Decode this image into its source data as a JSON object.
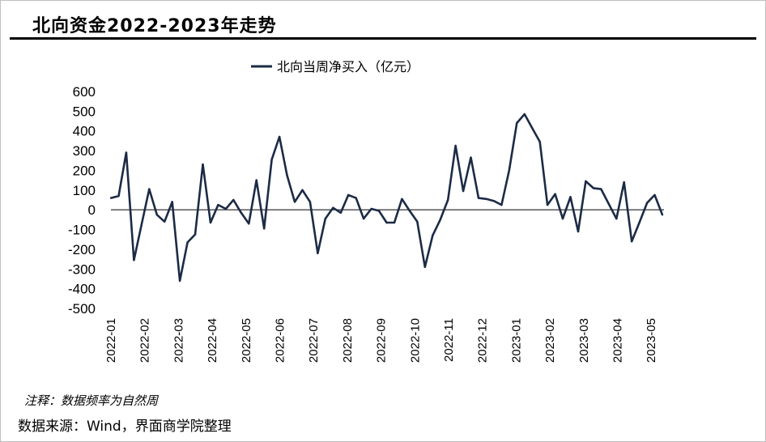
{
  "header": {
    "title": "北向资金2022-2023年走势"
  },
  "footer": {
    "note": "注释：数据频率为自然周",
    "source": "数据来源：Wind，界面商学院整理"
  },
  "chart_data": {
    "type": "line",
    "title": "北向资金2022-2023年走势",
    "xlabel": "",
    "ylabel": "",
    "ylim": [
      -500,
      600
    ],
    "y_ticks": [
      600,
      500,
      400,
      300,
      200,
      100,
      0,
      -100,
      -200,
      -300,
      -400,
      -500
    ],
    "x_tick_labels": [
      "2022-01",
      "2022-02",
      "2022-03",
      "2022-04",
      "2022-05",
      "2022-06",
      "2022-07",
      "2022-08",
      "2022-09",
      "2022-10",
      "2022-11",
      "2022-12",
      "2023-01",
      "2023-02",
      "2023-03",
      "2023-04",
      "2023-05"
    ],
    "line_color": "#1c2b45",
    "series": [
      {
        "name": "北向当周净买入（亿元）",
        "values": [
          60,
          70,
          290,
          -255,
          -75,
          105,
          -25,
          -60,
          40,
          -360,
          -165,
          -125,
          230,
          -65,
          25,
          5,
          50,
          -15,
          -70,
          150,
          -95,
          255,
          370,
          175,
          40,
          100,
          40,
          -220,
          -45,
          10,
          -15,
          75,
          60,
          -45,
          5,
          -5,
          -65,
          -65,
          55,
          -5,
          -60,
          -290,
          -130,
          -50,
          50,
          325,
          95,
          265,
          60,
          55,
          45,
          25,
          200,
          440,
          485,
          415,
          345,
          25,
          80,
          -45,
          65,
          -110,
          145,
          110,
          105,
          30,
          -45,
          140,
          -160,
          -65,
          35,
          75,
          -25
        ]
      }
    ]
  }
}
